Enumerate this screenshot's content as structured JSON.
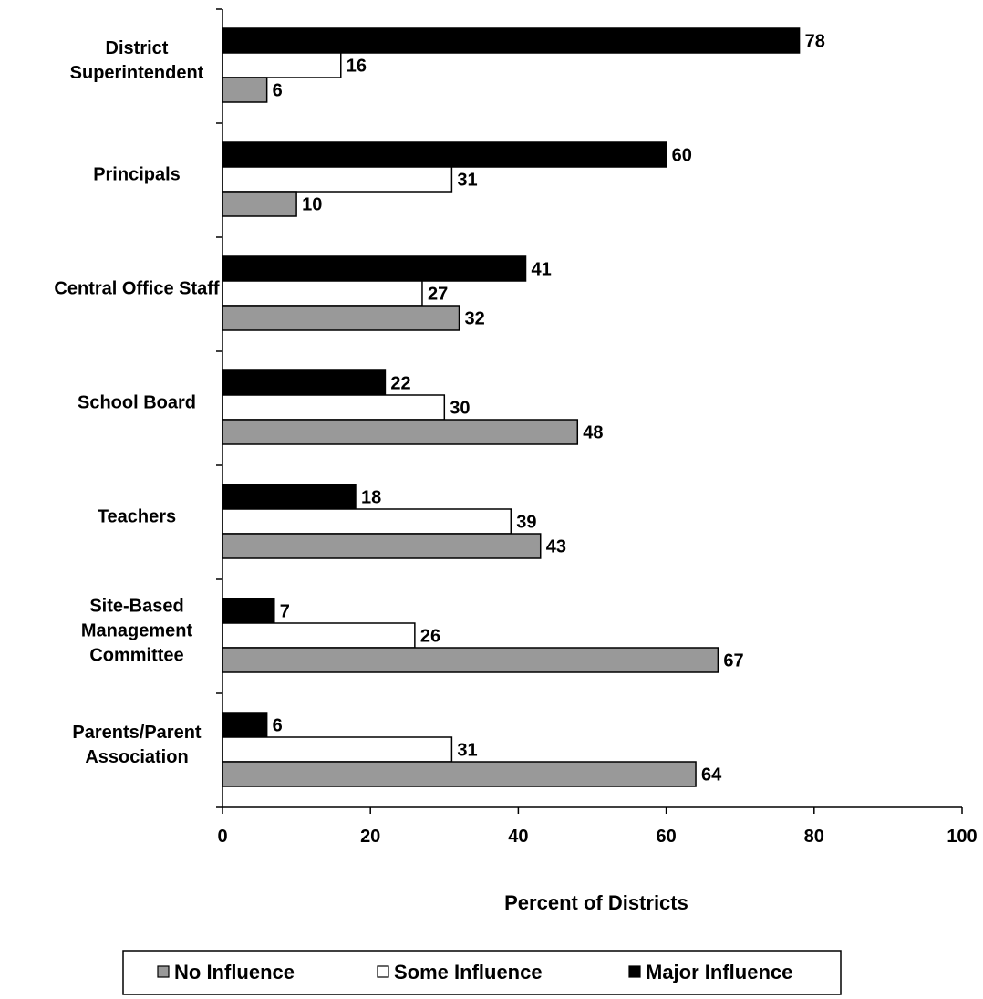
{
  "chart_data": {
    "type": "bar",
    "orientation": "horizontal",
    "categories": [
      [
        "District",
        "Superintendent"
      ],
      [
        "Principals"
      ],
      [
        "Central Office Staff"
      ],
      [
        "School Board"
      ],
      [
        "Teachers"
      ],
      [
        "Site-Based",
        "Management",
        "Committee"
      ],
      [
        "Parents/Parent",
        "Association"
      ]
    ],
    "series": [
      {
        "name": "Major Influence",
        "color": "#000000",
        "values": [
          78,
          60,
          41,
          22,
          18,
          7,
          6
        ]
      },
      {
        "name": "Some Influence",
        "color": "#ffffff",
        "values": [
          16,
          31,
          27,
          30,
          39,
          26,
          31
        ]
      },
      {
        "name": "No Influence",
        "color": "#999999",
        "values": [
          6,
          10,
          32,
          48,
          43,
          67,
          64
        ]
      }
    ],
    "legend_order": [
      "No Influence",
      "Some Influence",
      "Major Influence"
    ],
    "legend_placement": "bottom",
    "xlabel": "Percent of Districts",
    "xlim": [
      0,
      100
    ],
    "xticks": [
      0,
      20,
      40,
      60,
      80,
      100
    ],
    "grid": false
  }
}
